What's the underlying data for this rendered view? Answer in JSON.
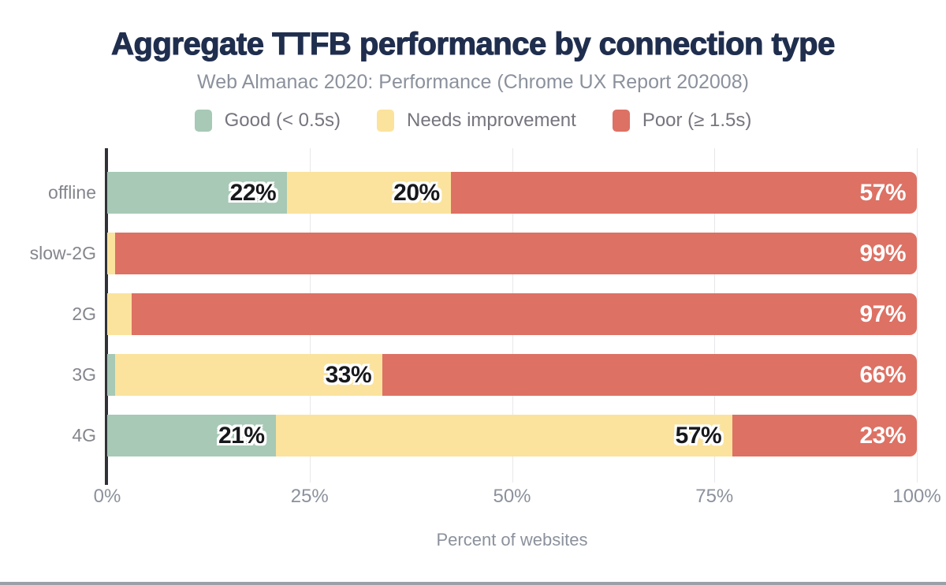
{
  "title": "Aggregate TTFB performance by connection type",
  "subtitle": "Web Almanac 2020: Performance (Chrome UX Report 202008)",
  "chart_data": {
    "type": "bar",
    "orientation": "horizontal",
    "stacked": true,
    "categories": [
      "offline",
      "slow-2G",
      "2G",
      "3G",
      "4G"
    ],
    "series": [
      {
        "name": "Good (< 0.5s)",
        "color": "#a7c9b6",
        "values": [
          22,
          0,
          0,
          1,
          21
        ]
      },
      {
        "name": "Needs improvement",
        "color": "#fbe39d",
        "values": [
          20,
          1,
          3,
          33,
          57
        ]
      },
      {
        "name": "Poor (≥ 1.5s)",
        "color": "#dd7164",
        "values": [
          57,
          99,
          97,
          66,
          23
        ]
      }
    ],
    "bar_labels": [
      [
        "22%",
        "",
        "",
        "1%",
        "21%"
      ],
      [
        "20%",
        "1%",
        "3%",
        "33%",
        "57%"
      ],
      [
        "57%",
        "99%",
        "97%",
        "66%",
        "23%"
      ]
    ],
    "xlabel": "Percent of websites",
    "x_ticks": [
      "0%",
      "25%",
      "50%",
      "75%",
      "100%"
    ],
    "xlim": [
      0,
      100
    ],
    "grid": "vertical",
    "legend_position": "top"
  },
  "colors": {
    "title": "#202e4e",
    "subtitle": "#8b919c",
    "legend_text": "#75757e",
    "category_text": "#84868d",
    "tick_text": "#8b919c",
    "axis_line": "#303238",
    "gridline": "#e8e8ea",
    "label_dark": "#17181b",
    "label_light": "#ffffff",
    "background": "#ffffff",
    "bottom_border": "#9ba0a8"
  }
}
